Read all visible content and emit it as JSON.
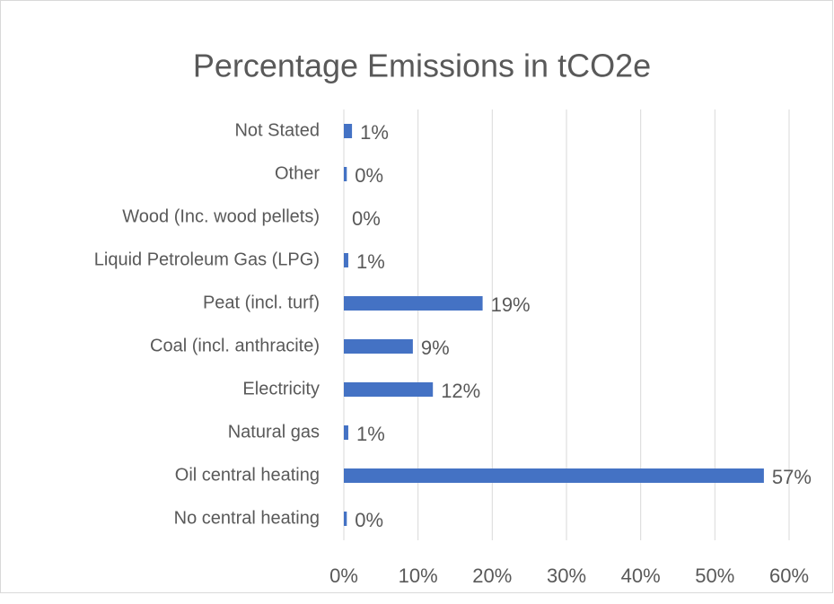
{
  "chart_data": {
    "type": "bar",
    "orientation": "horizontal",
    "title": "Percentage Emissions in tCO2e",
    "categories": [
      "Not Stated",
      "Other",
      "Wood (Inc. wood pellets)",
      "Liquid Petroleum Gas (LPG)",
      "Peat (incl. turf)",
      "Coal (incl. anthracite)",
      "Electricity",
      "Natural gas",
      "Oil central heating",
      "No central heating"
    ],
    "values": [
      1.1,
      0.4,
      0,
      0.6,
      18.7,
      9.3,
      12.0,
      0.6,
      56.6,
      0.4
    ],
    "value_labels": [
      "1%",
      "0%",
      "0%",
      "1%",
      "19%",
      "9%",
      "12%",
      "1%",
      "57%",
      "0%"
    ],
    "color": "#4472c4",
    "xlim": [
      0,
      60
    ],
    "xticks": [
      {
        "value": 0,
        "label": "0%"
      },
      {
        "value": 10,
        "label": "10%"
      },
      {
        "value": 20,
        "label": "20%"
      },
      {
        "value": 30,
        "label": "30%"
      },
      {
        "value": 40,
        "label": "40%"
      },
      {
        "value": 50,
        "label": "50%"
      },
      {
        "value": 60,
        "label": "60%"
      }
    ],
    "grid": true
  }
}
